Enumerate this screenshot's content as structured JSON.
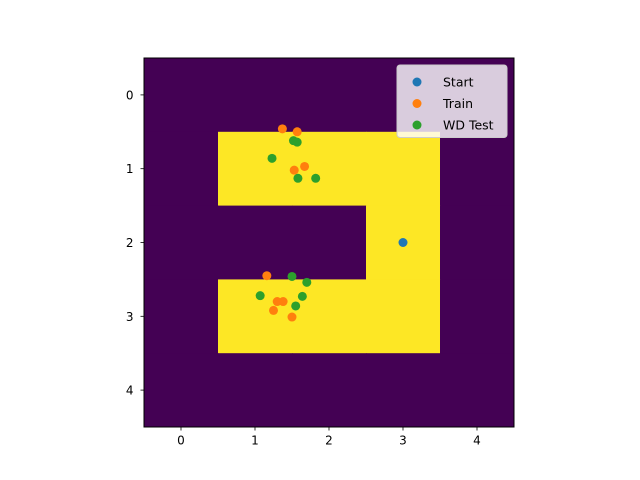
{
  "chart_data": {
    "type": "scatter",
    "background": "heatmap",
    "title": "",
    "xlabel": "",
    "ylabel": "",
    "xlim": [
      -0.5,
      4.5
    ],
    "ylim": [
      4.5,
      -0.5
    ],
    "y_inverted": true,
    "grid": false,
    "legend_position": "top-right",
    "xticks": [
      0,
      1,
      2,
      3,
      4
    ],
    "yticks": [
      0,
      1,
      2,
      3,
      4
    ],
    "xtick_labels": [
      "0",
      "1",
      "2",
      "3",
      "4"
    ],
    "ytick_labels": [
      "0",
      "1",
      "2",
      "3",
      "4"
    ],
    "heatmap": {
      "colors": {
        "0": "#440154",
        "1": "#fde725"
      },
      "grid": [
        [
          0,
          0,
          0,
          0,
          0
        ],
        [
          0,
          1,
          1,
          1,
          0
        ],
        [
          0,
          0,
          0,
          1,
          0
        ],
        [
          0,
          1,
          1,
          1,
          0
        ],
        [
          0,
          0,
          0,
          0,
          0
        ]
      ]
    },
    "series": [
      {
        "name": "Start",
        "color": "#1f77b4",
        "points": [
          [
            3.0,
            2.0
          ]
        ]
      },
      {
        "name": "Train",
        "color": "#ff7f0e",
        "points": [
          [
            1.37,
            0.46
          ],
          [
            1.57,
            0.5
          ],
          [
            1.53,
            1.02
          ],
          [
            1.67,
            0.97
          ],
          [
            1.16,
            2.45
          ],
          [
            1.3,
            2.8
          ],
          [
            1.38,
            2.8
          ],
          [
            1.25,
            2.92
          ],
          [
            1.5,
            3.01
          ]
        ]
      },
      {
        "name": "WD Test",
        "color": "#2ca02c",
        "points": [
          [
            1.52,
            0.62
          ],
          [
            1.57,
            0.64
          ],
          [
            1.23,
            0.86
          ],
          [
            1.58,
            1.13
          ],
          [
            1.82,
            1.13
          ],
          [
            1.5,
            2.46
          ],
          [
            1.7,
            2.54
          ],
          [
            1.07,
            2.72
          ],
          [
            1.64,
            2.73
          ],
          [
            1.55,
            2.86
          ]
        ]
      }
    ]
  }
}
